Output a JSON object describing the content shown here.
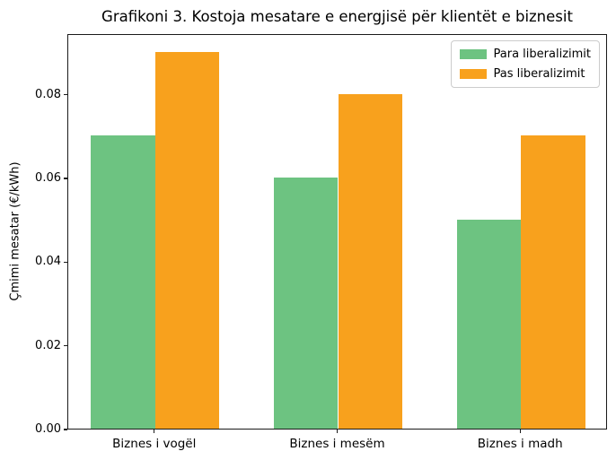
{
  "chart_data": {
    "type": "bar",
    "title": "Grafikoni 3. Kostoja mesatare e energjisë për klientët e biznesit",
    "categories": [
      "Biznes i vogël",
      "Biznes i mesëm",
      "Biznes i madh"
    ],
    "series": [
      {
        "name": "Para liberalizimit",
        "color": "#6DC381",
        "values": [
          0.07,
          0.06,
          0.05
        ]
      },
      {
        "name": "Pas liberalizimit",
        "color": "#F8A11D",
        "values": [
          0.09,
          0.08,
          0.07
        ]
      }
    ],
    "xlabel": "",
    "ylabel": "Çmimi mesatar (€/kWh)",
    "ylim": [
      0,
      0.0945
    ],
    "yticks": [
      "0.00",
      "0.02",
      "0.04",
      "0.06",
      "0.08"
    ],
    "ytick_values": [
      0,
      0.02,
      0.04,
      0.06,
      0.08
    ],
    "grid": false,
    "legend_position": "upper right",
    "bar_width_units": 0.35,
    "x_range_units": 2.95,
    "x_min_units": -0.475
  }
}
